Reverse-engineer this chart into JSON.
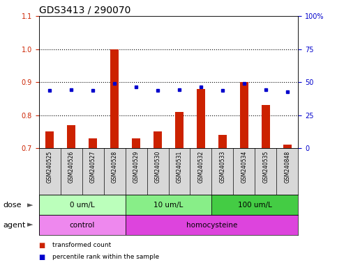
{
  "title": "GDS3413 / 290070",
  "samples": [
    "GSM240525",
    "GSM240526",
    "GSM240527",
    "GSM240528",
    "GSM240529",
    "GSM240530",
    "GSM240531",
    "GSM240532",
    "GSM240533",
    "GSM240534",
    "GSM240535",
    "GSM240848"
  ],
  "bar_values": [
    0.75,
    0.77,
    0.73,
    1.0,
    0.73,
    0.75,
    0.81,
    0.88,
    0.74,
    0.9,
    0.83,
    0.71
  ],
  "dot_values": [
    0.875,
    0.878,
    0.874,
    0.895,
    0.885,
    0.875,
    0.877,
    0.886,
    0.874,
    0.895,
    0.877,
    0.871
  ],
  "bar_color": "#cc2200",
  "dot_color": "#0000cc",
  "ylim_left": [
    0.7,
    1.1
  ],
  "ylim_right": [
    0,
    100
  ],
  "yticks_left": [
    0.7,
    0.8,
    0.9,
    1.0,
    1.1
  ],
  "yticks_right": [
    0,
    25,
    50,
    75,
    100
  ],
  "ytick_labels_right": [
    "0",
    "25",
    "50",
    "75",
    "100%"
  ],
  "dotted_lines": [
    0.8,
    0.9,
    1.0
  ],
  "dose_groups": [
    {
      "label": "0 um/L",
      "start": 0,
      "end": 3,
      "color": "#bbffbb"
    },
    {
      "label": "10 um/L",
      "start": 4,
      "end": 7,
      "color": "#88ee88"
    },
    {
      "label": "100 um/L",
      "start": 8,
      "end": 11,
      "color": "#44cc44"
    }
  ],
  "agent_groups": [
    {
      "label": "control",
      "start": 0,
      "end": 3,
      "color": "#ee88ee"
    },
    {
      "label": "homocysteine",
      "start": 4,
      "end": 11,
      "color": "#dd44dd"
    }
  ],
  "dose_label": "dose",
  "agent_label": "agent",
  "legend_bar": "transformed count",
  "legend_dot": "percentile rank within the sample",
  "bar_width": 0.4,
  "label_area_bg": "#d8d8d8",
  "title_fontsize": 10,
  "tick_fontsize": 7,
  "sample_fontsize": 5.5
}
